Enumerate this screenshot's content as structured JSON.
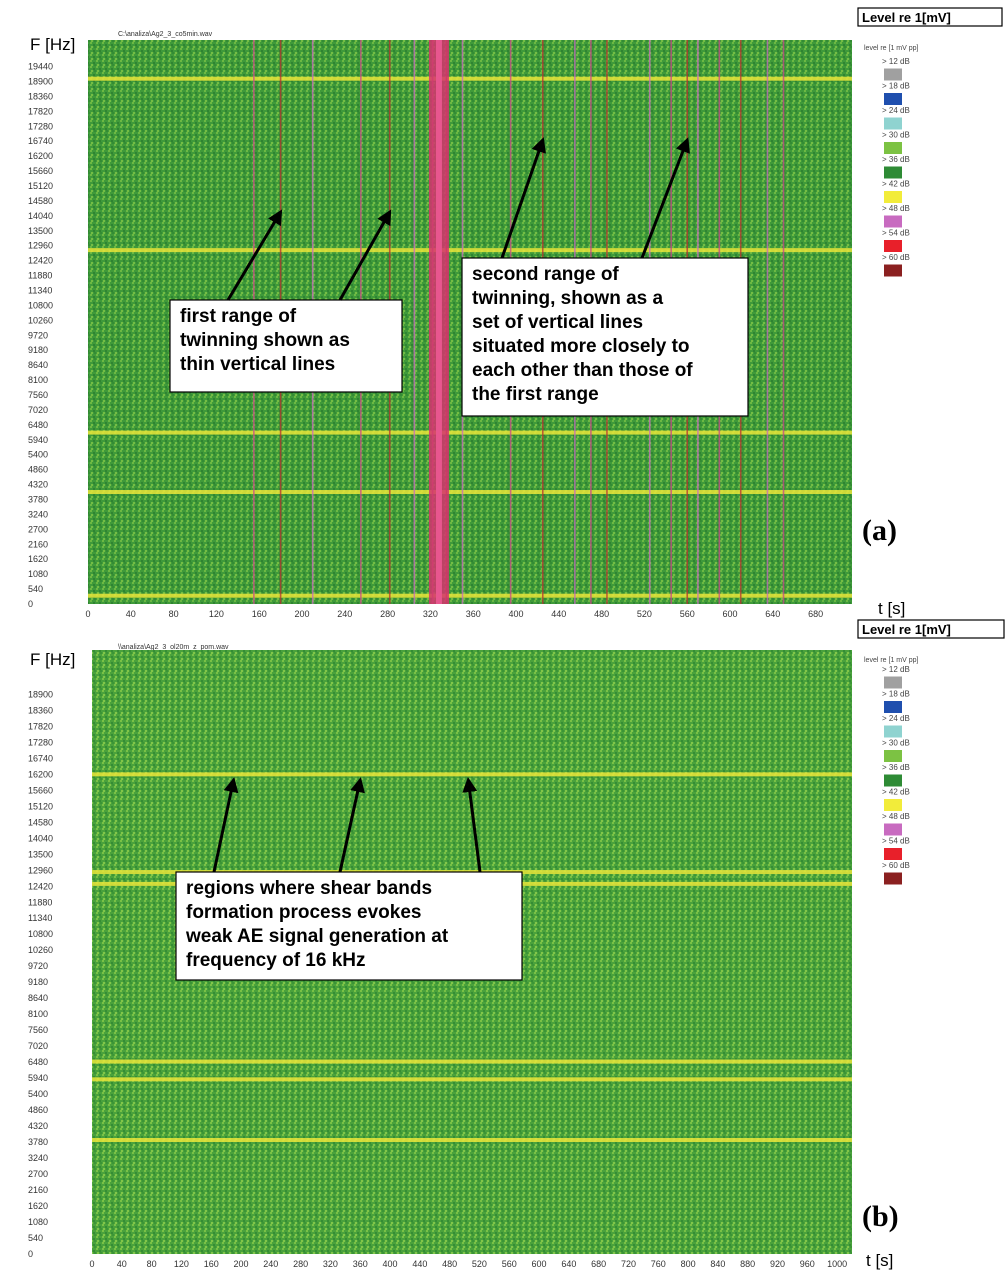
{
  "chart_data": [
    {
      "type": "heatmap",
      "panel_label": "(a)",
      "file_title": "C:\\analiza\\Ag2_3_co5min.wav",
      "ylabel": "F [Hz]",
      "xlabel": "t [s]",
      "xlim": [
        0,
        714
      ],
      "ylim": [
        0,
        20400
      ],
      "x_ticks": [
        "0",
        "40",
        "80",
        "120",
        "160",
        "200",
        "240",
        "280",
        "320",
        "360",
        "400",
        "440",
        "480",
        "520",
        "560",
        "600",
        "640",
        "680"
      ],
      "y_ticks": [
        "0",
        "540",
        "1080",
        "1620",
        "2160",
        "2700",
        "3240",
        "3780",
        "4320",
        "4860",
        "5400",
        "5940",
        "6480",
        "7020",
        "7560",
        "8100",
        "8640",
        "9180",
        "9720",
        "10260",
        "10800",
        "11340",
        "11880",
        "12420",
        "12960",
        "13500",
        "14040",
        "14580",
        "15120",
        "15660",
        "16200",
        "16740",
        "17280",
        "17820",
        "18360",
        "18900",
        "19440"
      ],
      "horizontal_bands_hz": [
        19000,
        12800,
        6200,
        4050,
        300
      ],
      "vertical_events_s": [
        155,
        180,
        210,
        255,
        282,
        305,
        322,
        335,
        350,
        395,
        425,
        455,
        470,
        485,
        525,
        545,
        560,
        570,
        590,
        610,
        635,
        650
      ],
      "strong_event_s": 328,
      "legend": {
        "title": "Level re 1[mV]",
        "subtitle": "level re [1 mV pp]",
        "entries": [
          {
            "label": "> 12 dB",
            "color": null
          },
          {
            "label": "> 18 dB",
            "color": "#a0a0a0"
          },
          {
            "label": "> 24 dB",
            "color": "#1f4fae"
          },
          {
            "label": "> 30 dB",
            "color": "#8fd3d0"
          },
          {
            "label": "> 36 dB",
            "color": "#7cc243"
          },
          {
            "label": "> 42 dB",
            "color": "#2e8b35"
          },
          {
            "label": "> 48 dB",
            "color": "#f2ec3a"
          },
          {
            "label": "> 54 dB",
            "color": "#c86bc0"
          },
          {
            "label": "> 60 dB",
            "color": "#e8202a"
          },
          {
            "label": "",
            "color": "#8b2020"
          }
        ]
      },
      "annotations": [
        {
          "lines": [
            "first range of",
            "twinning shown as",
            "thin vertical lines"
          ],
          "targets_s": [
            180,
            282
          ]
        },
        {
          "lines": [
            "second range of",
            "twinning, shown as a",
            "set of vertical lines",
            "situated more closely to",
            "each other than those of",
            "the first range"
          ],
          "targets_s": [
            425,
            560
          ]
        }
      ]
    },
    {
      "type": "heatmap",
      "panel_label": "(b)",
      "file_title": "\\\\analiza\\Ag2_3_ol20m_z_pom.wav",
      "ylabel": "F [Hz]",
      "xlabel": "t [s]",
      "xlim": [
        0,
        1020
      ],
      "ylim": [
        0,
        20400
      ],
      "x_ticks": [
        "0",
        "40",
        "80",
        "120",
        "160",
        "200",
        "240",
        "280",
        "320",
        "360",
        "400",
        "440",
        "480",
        "520",
        "560",
        "600",
        "640",
        "680",
        "720",
        "760",
        "800",
        "840",
        "880",
        "920",
        "960",
        "1000"
      ],
      "y_ticks": [
        "0",
        "540",
        "1080",
        "1620",
        "2160",
        "2700",
        "3240",
        "3780",
        "4320",
        "4860",
        "5400",
        "5940",
        "6480",
        "7020",
        "7560",
        "8100",
        "8640",
        "9180",
        "9720",
        "10260",
        "10800",
        "11340",
        "11880",
        "12420",
        "12960",
        "13500",
        "14040",
        "14580",
        "15120",
        "15660",
        "16200",
        "16740",
        "17280",
        "17820",
        "18360",
        "18900"
      ],
      "horizontal_bands_hz": [
        16200,
        12900,
        12500,
        6500,
        5900,
        3850
      ],
      "legend": {
        "title": "Level re 1[mV]",
        "subtitle": "level re [1 mV pp]",
        "entries": [
          {
            "label": "> 12 dB",
            "color": null
          },
          {
            "label": "> 18 dB",
            "color": "#a0a0a0"
          },
          {
            "label": "> 24 dB",
            "color": "#1f4fae"
          },
          {
            "label": "> 30 dB",
            "color": "#8fd3d0"
          },
          {
            "label": "> 36 dB",
            "color": "#7cc243"
          },
          {
            "label": "> 42 dB",
            "color": "#2e8b35"
          },
          {
            "label": "> 48 dB",
            "color": "#f2ec3a"
          },
          {
            "label": "> 54 dB",
            "color": "#c86bc0"
          },
          {
            "label": "> 60 dB",
            "color": "#e8202a"
          },
          {
            "label": "",
            "color": "#8b2020"
          }
        ]
      },
      "annotations": [
        {
          "lines": [
            "regions where shear bands",
            "formation process evokes",
            "weak AE signal generation at",
            "frequency of 16 kHz"
          ],
          "targets_s": [
            190,
            360,
            505
          ]
        }
      ]
    }
  ]
}
